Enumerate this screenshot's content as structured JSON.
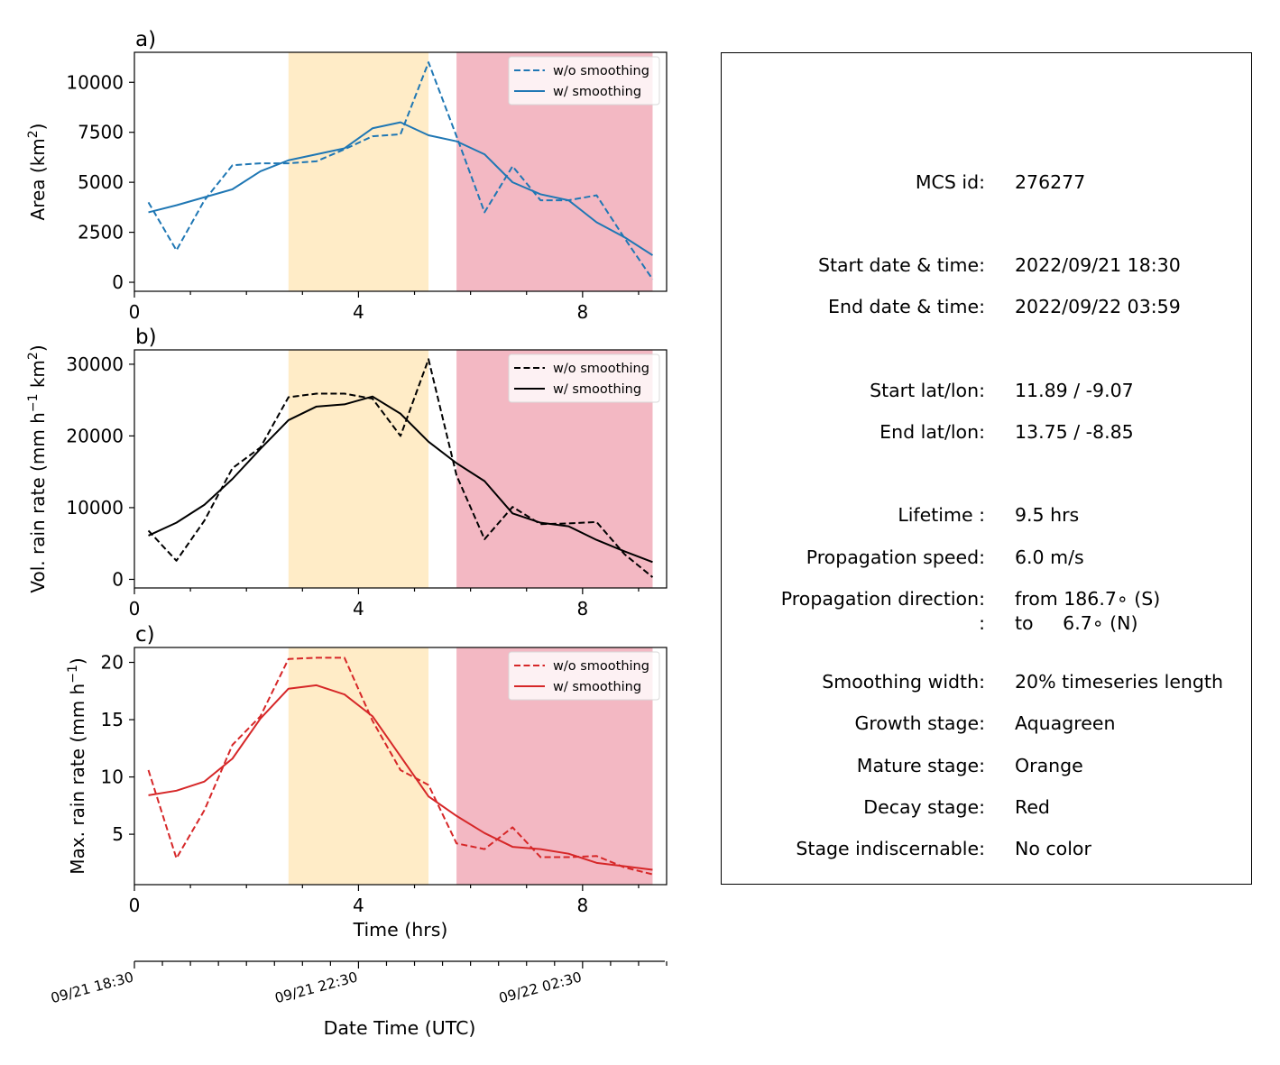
{
  "chart_data": [
    {
      "type": "line",
      "panel_label": "a)",
      "xlabel": "",
      "ylabel": "Area  (km$^2$)",
      "ylabel_parts": [
        "Area  (km",
        "2",
        ")"
      ],
      "xlim": [
        0,
        9.5
      ],
      "ylim": [
        -450,
        11500
      ],
      "yticks": [
        0,
        2500,
        5000,
        7500,
        10000
      ],
      "xticks": [
        0,
        4,
        8
      ],
      "x": [
        0.25,
        0.75,
        1.25,
        1.75,
        2.25,
        2.75,
        3.25,
        3.75,
        4.25,
        4.75,
        5.25,
        5.75,
        6.25,
        6.75,
        7.25,
        7.75,
        8.25,
        8.75,
        9.25
      ],
      "series": [
        {
          "name": "w/o smoothing",
          "style": "dashed",
          "color": "#1f77b4",
          "values": [
            4000,
            1600,
            4100,
            5850,
            5950,
            5950,
            6050,
            6650,
            7300,
            7400,
            11000,
            7300,
            3500,
            5800,
            4100,
            4100,
            4350,
            2200,
            150
          ]
        },
        {
          "name": "w/ smoothing",
          "style": "solid",
          "color": "#1f77b4",
          "values": [
            3500,
            3850,
            4250,
            4650,
            5550,
            6100,
            6400,
            6700,
            7700,
            8000,
            7350,
            7050,
            6400,
            5000,
            4400,
            4100,
            3000,
            2250,
            1350
          ]
        }
      ],
      "legend_position": "upper right",
      "stages": [
        {
          "stage": "mature",
          "x0": 2.75,
          "x1": 5.25,
          "color": "#ffecc7"
        },
        {
          "stage": "decay",
          "x0": 5.75,
          "x1": 9.25,
          "color": "#f3b8c3"
        }
      ]
    },
    {
      "type": "line",
      "panel_label": "b)",
      "xlabel": "",
      "ylabel": "Vol. rain rate (mm h$^{-1}$ km$^2$)",
      "ylabel_parts": [
        "Vol. rain rate (mm h",
        "−1",
        " km",
        "2",
        ")"
      ],
      "xlim": [
        0,
        9.5
      ],
      "ylim": [
        -1200,
        32000
      ],
      "yticks": [
        0,
        10000,
        20000,
        30000
      ],
      "xticks": [
        0,
        4,
        8
      ],
      "x": [
        0.25,
        0.75,
        1.25,
        1.75,
        2.25,
        2.75,
        3.25,
        3.75,
        4.25,
        4.75,
        5.25,
        5.75,
        6.25,
        6.75,
        7.25,
        7.75,
        8.25,
        8.75,
        9.25
      ],
      "series": [
        {
          "name": "w/o smoothing",
          "style": "dashed",
          "color": "#000000",
          "values": [
            6800,
            2600,
            8200,
            15500,
            18400,
            25400,
            25900,
            25900,
            25200,
            20000,
            30700,
            14500,
            5600,
            10100,
            7700,
            7800,
            8000,
            3500,
            300
          ]
        },
        {
          "name": "w/ smoothing",
          "style": "solid",
          "color": "#000000",
          "values": [
            6100,
            7900,
            10400,
            14000,
            18200,
            22200,
            24100,
            24400,
            25500,
            23100,
            19200,
            16200,
            13700,
            9200,
            7900,
            7400,
            5500,
            3900,
            2400
          ]
        }
      ],
      "legend_position": "upper right",
      "stages": [
        {
          "stage": "mature",
          "x0": 2.75,
          "x1": 5.25,
          "color": "#ffecc7"
        },
        {
          "stage": "decay",
          "x0": 5.75,
          "x1": 9.25,
          "color": "#f3b8c3"
        }
      ]
    },
    {
      "type": "line",
      "panel_label": "c)",
      "xlabel": "Time (hrs)",
      "ylabel": "Max. rain rate  (mm h$^{-1}$)",
      "ylabel_parts": [
        "Max. rain rate  (mm h",
        "−1",
        ")"
      ],
      "xlim": [
        0,
        9.5
      ],
      "ylim": [
        0.6,
        21.3
      ],
      "yticks": [
        5,
        10,
        15,
        20
      ],
      "xticks": [
        0,
        4,
        8
      ],
      "x": [
        0.25,
        0.75,
        1.25,
        1.75,
        2.25,
        2.75,
        3.25,
        3.75,
        4.25,
        4.75,
        5.25,
        5.75,
        6.25,
        6.75,
        7.25,
        7.75,
        8.25,
        8.75,
        9.25
      ],
      "series": [
        {
          "name": "w/o smoothing",
          "style": "dashed",
          "color": "#d62728",
          "values": [
            10.6,
            2.9,
            7.1,
            12.8,
            15.3,
            20.3,
            20.4,
            20.4,
            14.9,
            10.6,
            9.3,
            4.2,
            3.7,
            5.6,
            3.0,
            3.0,
            3.1,
            2.1,
            1.5
          ]
        },
        {
          "name": "w/ smoothing",
          "style": "solid",
          "color": "#d62728",
          "values": [
            8.4,
            8.8,
            9.6,
            11.6,
            15.1,
            17.7,
            18.0,
            17.2,
            15.3,
            11.8,
            8.3,
            6.6,
            5.1,
            3.9,
            3.7,
            3.3,
            2.5,
            2.2,
            1.9
          ]
        }
      ],
      "legend_position": "upper right",
      "stages": [
        {
          "stage": "mature",
          "x0": 2.75,
          "x1": 5.25,
          "color": "#ffecc7"
        },
        {
          "stage": "decay",
          "x0": 5.75,
          "x1": 9.25,
          "color": "#f3b8c3"
        }
      ]
    }
  ],
  "datetime_axis": {
    "xlabel": "Date Time (UTC)",
    "tick_labels": [
      {
        "hour": 0,
        "label": "09/21 18:30"
      },
      {
        "hour": 4,
        "label": "09/21 22:30"
      },
      {
        "hour": 8,
        "label": "09/22 02:30"
      }
    ],
    "minor_tick_hours": [
      0,
      0.5,
      1,
      1.5,
      2,
      2.5,
      3,
      3.5,
      4,
      4.5,
      5,
      5.5,
      6,
      6.5,
      7,
      7.5,
      8,
      8.5,
      9,
      9.5
    ]
  },
  "info": {
    "rows": [
      {
        "label": "MCS id:",
        "value": "276277"
      },
      {
        "label": "Start date & time:",
        "value": "2022/09/21 18:30"
      },
      {
        "label": "End date & time:",
        "value": "2022/09/22 03:59"
      },
      {
        "label": "Start lat/lon:",
        "value": "11.89 / -9.07"
      },
      {
        "label": "End lat/lon:",
        "value": "13.75 / -8.85"
      },
      {
        "label": "Lifetime :",
        "value": "9.5 hrs"
      },
      {
        "label": "Propagation speed:",
        "value": "6.0 m/s"
      },
      {
        "label": "Propagation direction:",
        "value": "from 186.7∘ (S)"
      },
      {
        "label": ":",
        "value": "to     6.7∘ (N)"
      },
      {
        "label": "Smoothing width:",
        "value": "20% timeseries length"
      },
      {
        "label": "Growth stage:",
        "value": "Aquagreen"
      },
      {
        "label": "Mature stage:",
        "value": "Orange"
      },
      {
        "label": "Decay stage:",
        "value": "Red"
      },
      {
        "label": "Stage indiscernable:",
        "value": "No color"
      }
    ]
  }
}
